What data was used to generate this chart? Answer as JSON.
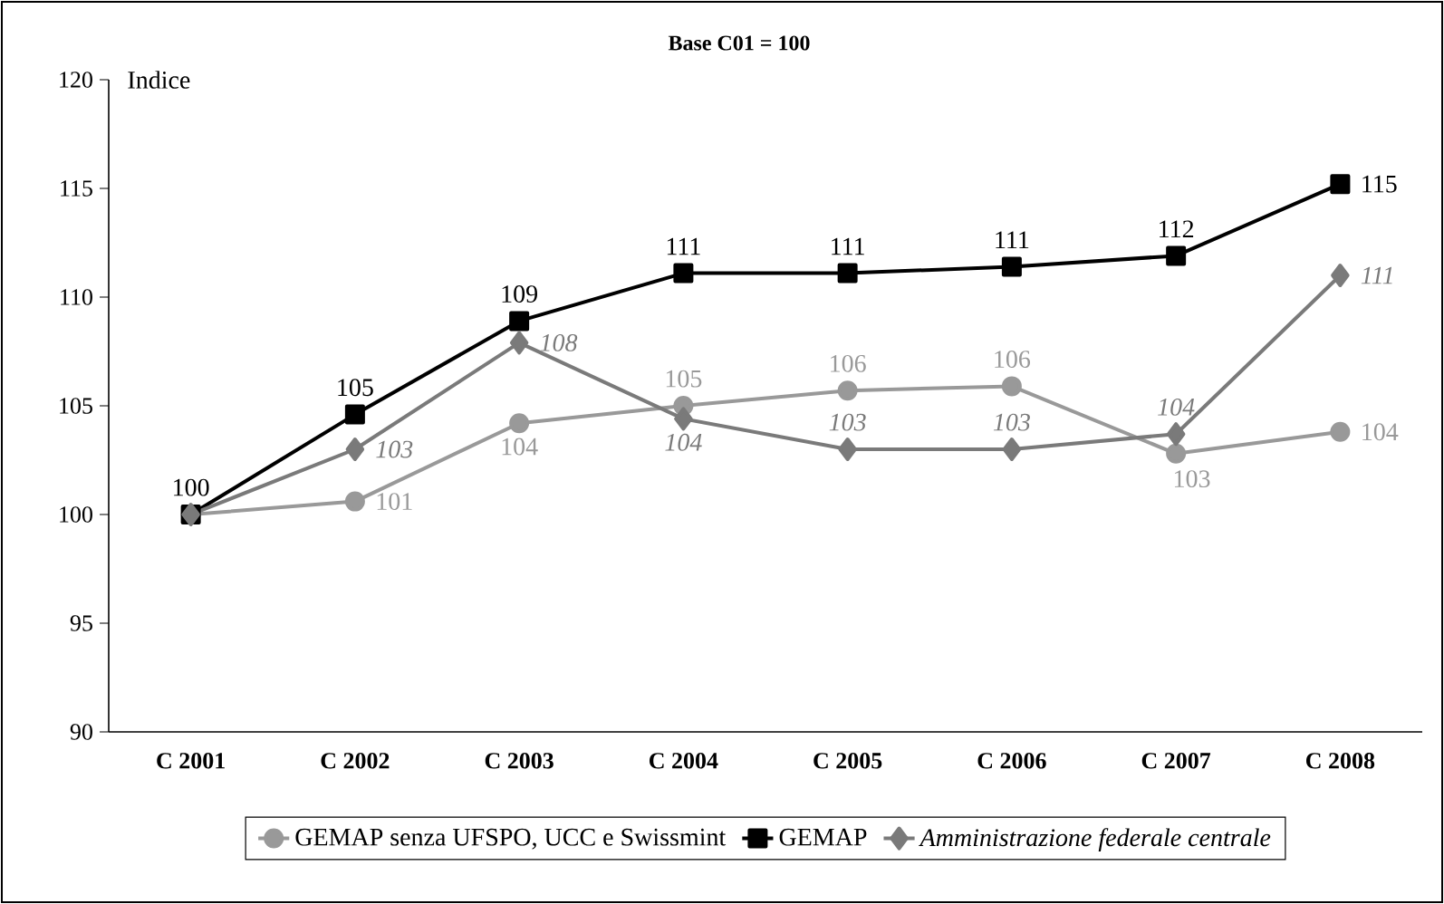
{
  "chart_data": {
    "type": "line",
    "title": "Base C01 = 100",
    "ylabel": "Indice",
    "categories": [
      "C 2001",
      "C 2002",
      "C 2003",
      "C 2004",
      "C 2005",
      "C 2006",
      "C 2007",
      "C 2008"
    ],
    "series": [
      {
        "name": "GEMAP senza UFSPO, UCC e Swissmint",
        "color": "#999999",
        "marker": "circle",
        "values": [
          100,
          100.6,
          104.2,
          105.0,
          105.7,
          105.9,
          102.8,
          103.8
        ],
        "value_labels": [
          null,
          "101",
          "104",
          "105",
          "106",
          "106",
          "103",
          "104"
        ]
      },
      {
        "name": "GEMAP",
        "color": "#000000",
        "marker": "square",
        "values": [
          100,
          104.6,
          108.9,
          111.1,
          111.1,
          111.4,
          111.9,
          115.2
        ],
        "value_labels": [
          "100",
          "105",
          "109",
          "111",
          "111",
          "111",
          "112",
          "115"
        ]
      },
      {
        "name": "Amministrazione federale centrale",
        "color": "#7a7a7a",
        "marker": "diamond",
        "values": [
          100,
          103.0,
          107.9,
          104.4,
          103.0,
          103.0,
          103.7,
          111.0
        ],
        "value_labels": [
          null,
          "103",
          "108",
          "104",
          "103",
          "103",
          "104",
          "111"
        ]
      }
    ],
    "ylim": [
      90,
      120
    ],
    "yticks": [
      90,
      95,
      100,
      105,
      110,
      115,
      120
    ],
    "grid": false,
    "legend": "bottom",
    "line_style": "solid"
  }
}
